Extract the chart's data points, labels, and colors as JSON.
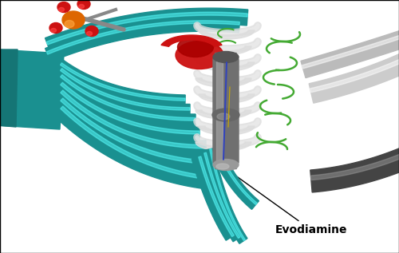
{
  "annotation_text": "Evodiamine",
  "annotation_fontsize": 10,
  "annotation_fontweight": "bold",
  "arrow_color": "black",
  "background_color": "white",
  "fig_width": 5.0,
  "fig_height": 3.17,
  "dpi": 100,
  "border_color": "black",
  "border_linewidth": 1.0,
  "teal": "#1a9090",
  "teal_dark": "#157575",
  "gray_mid": "#888888",
  "gray_light": "#cccccc",
  "gray_dark": "#555555",
  "gray_molecule": "#707070",
  "red_area": "#cc1111",
  "green_loop": "#44aa33",
  "orange_phosphate": "#dd6600",
  "white": "#ffffff"
}
